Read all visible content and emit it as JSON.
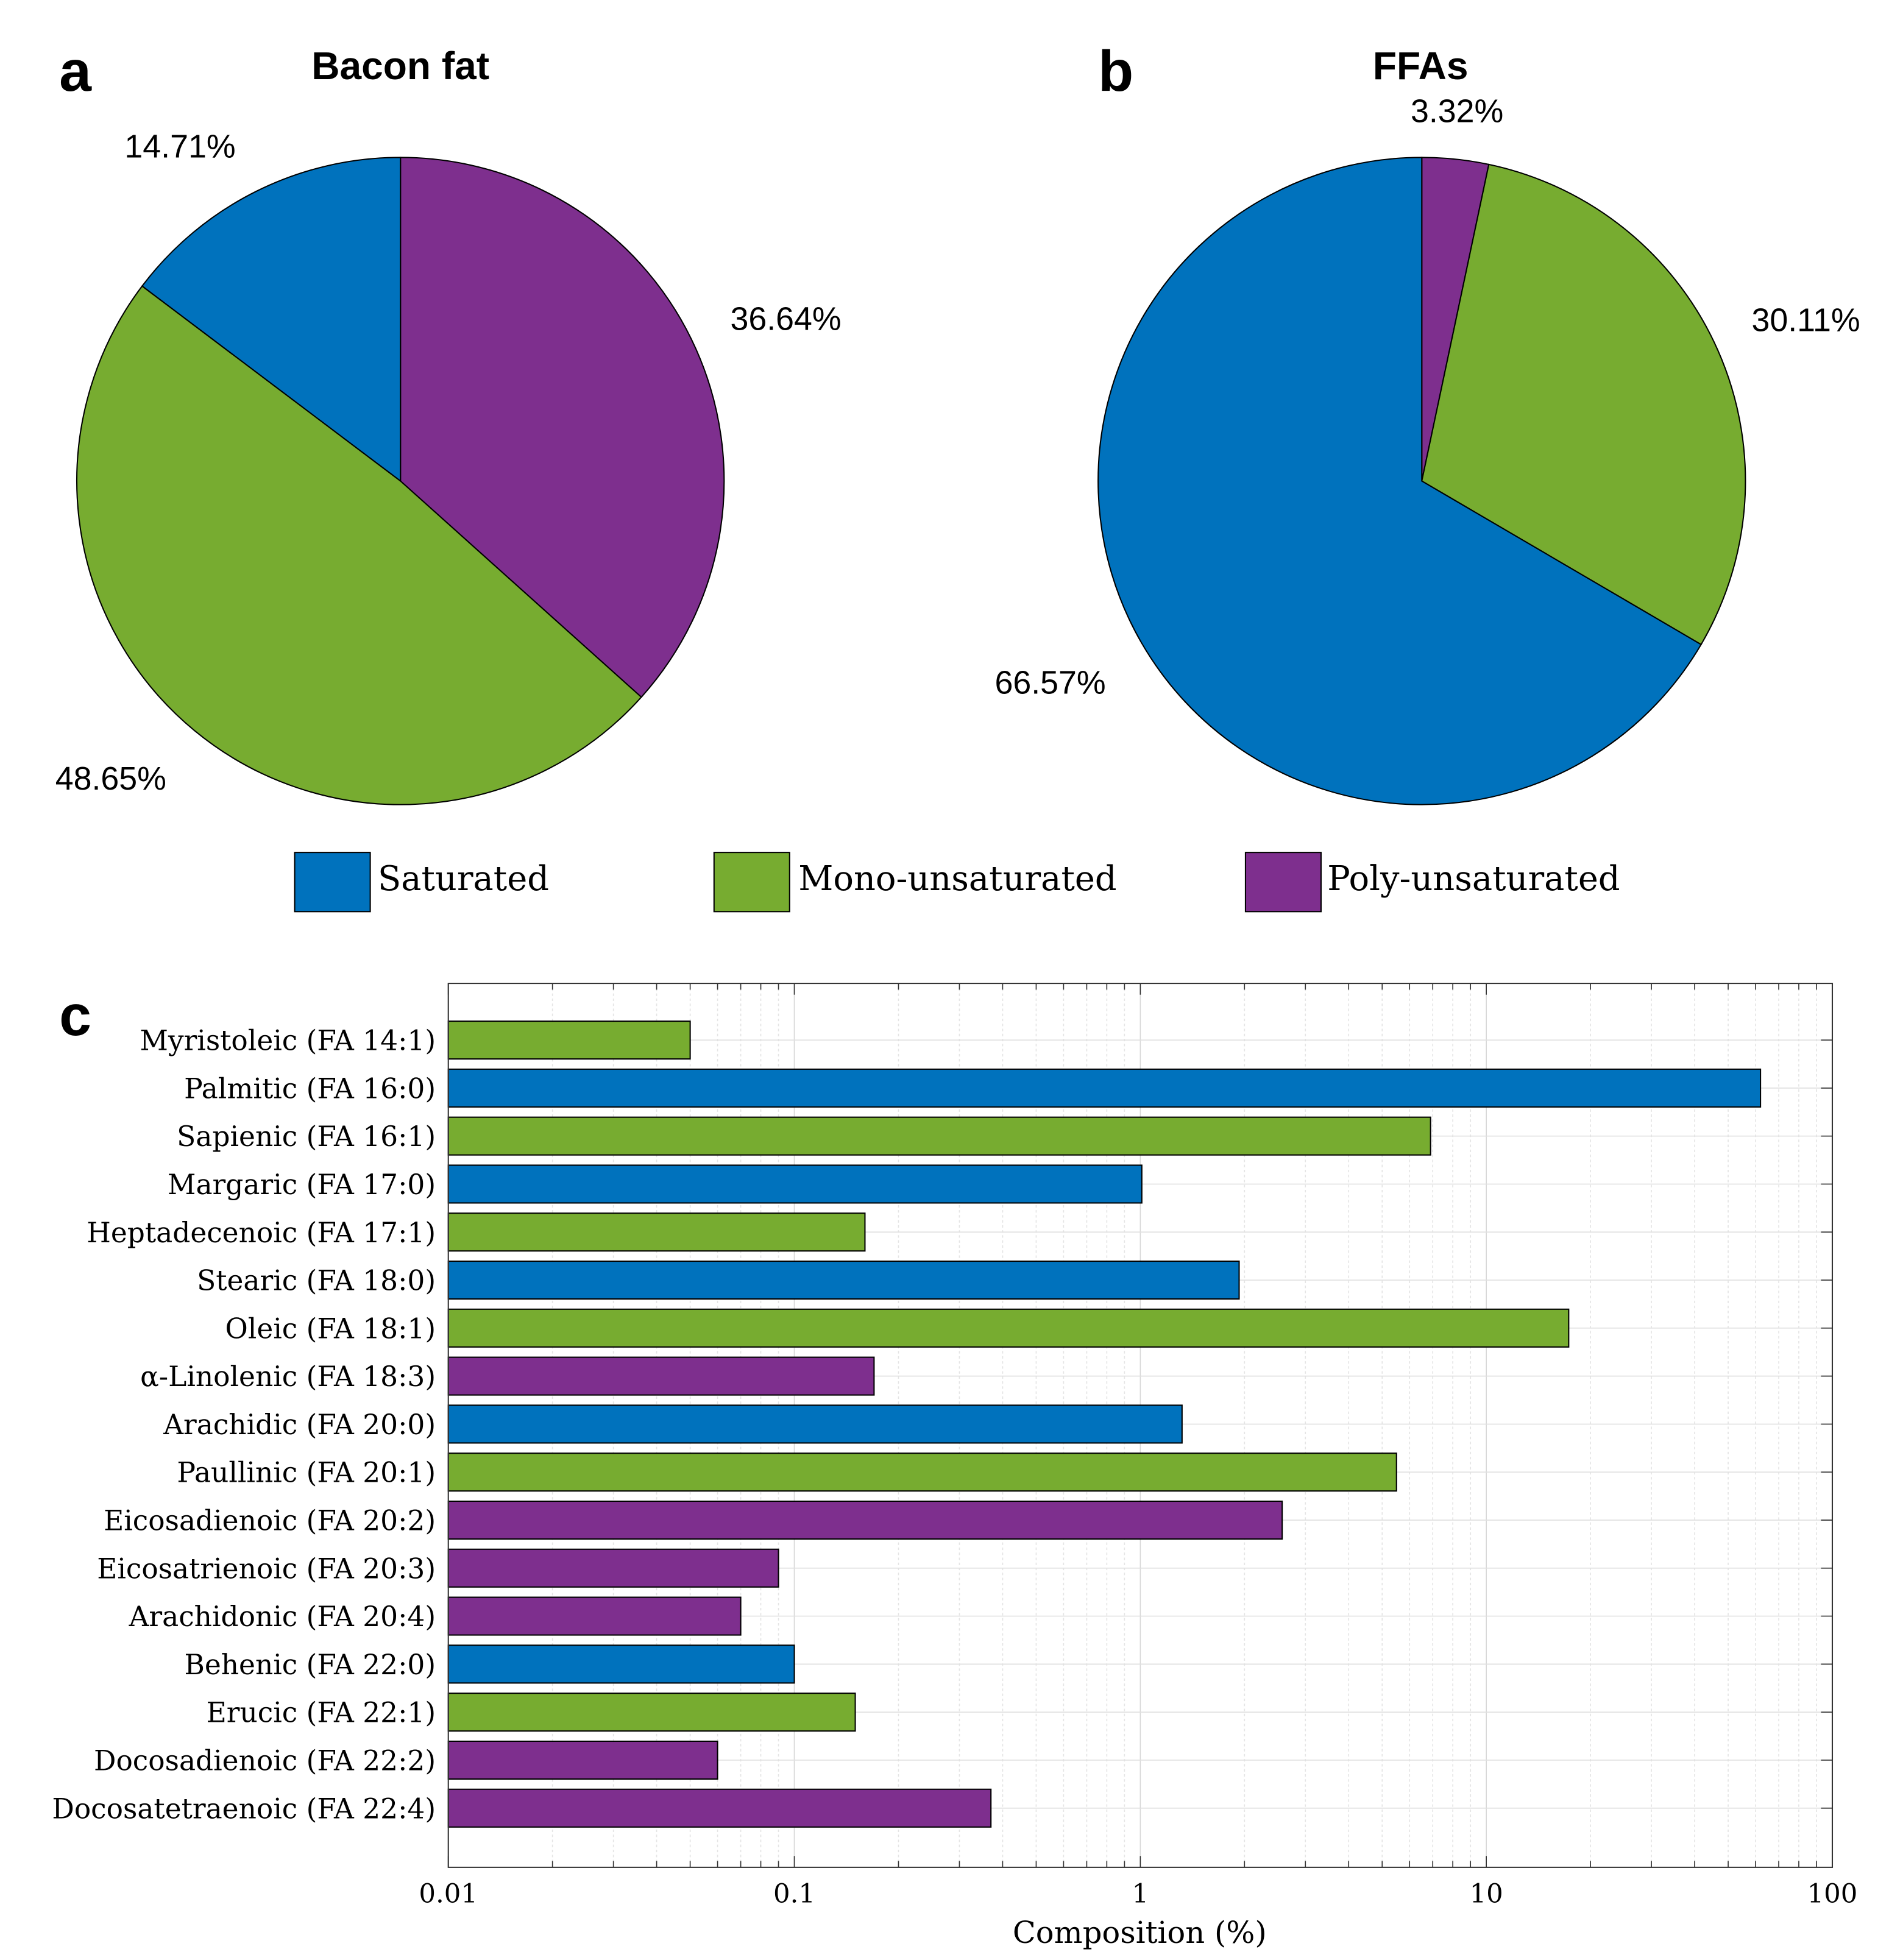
{
  "colors": {
    "saturated": "#0072BD",
    "mono": "#77AC30",
    "poly": "#7E2F8E"
  },
  "panels": {
    "a": "a",
    "b": "b",
    "c": "c"
  },
  "legend": [
    {
      "label": "Saturated",
      "color": "#0072BD"
    },
    {
      "label": "Mono-unsaturated",
      "color": "#77AC30"
    },
    {
      "label": "Poly-unsaturated",
      "color": "#7E2F8E"
    }
  ],
  "chart_data": [
    {
      "type": "pie",
      "title": "Bacon fat",
      "slices": [
        {
          "category": "Poly-unsaturated",
          "value": 36.64,
          "label": "36.64%",
          "color": "#7E2F8E"
        },
        {
          "category": "Mono-unsaturated",
          "value": 48.65,
          "label": "48.65%",
          "color": "#77AC30"
        },
        {
          "category": "Saturated",
          "value": 14.71,
          "label": "14.71%",
          "color": "#0072BD"
        }
      ]
    },
    {
      "type": "pie",
      "title": "FFAs",
      "slices": [
        {
          "category": "Poly-unsaturated",
          "value": 3.32,
          "label": "3.32%",
          "color": "#7E2F8E"
        },
        {
          "category": "Mono-unsaturated",
          "value": 30.11,
          "label": "30.11%",
          "color": "#77AC30"
        },
        {
          "category": "Saturated",
          "value": 66.57,
          "label": "66.57%",
          "color": "#0072BD"
        }
      ]
    },
    {
      "type": "bar",
      "orientation": "horizontal",
      "xlabel": "Composition (%)",
      "xscale": "log",
      "xlim": [
        0.01,
        100
      ],
      "xticks": [
        "0.01",
        "0.1",
        "1",
        "10",
        "100"
      ],
      "grid": true,
      "categories": [
        "Myristoleic (FA 14:1)",
        "Palmitic (FA 16:0)",
        "Sapienic (FA 16:1)",
        "Margaric (FA 17:0)",
        "Heptadecenoic (FA 17:1)",
        "Stearic (FA 18:0)",
        "Oleic (FA 18:1)",
        "α-Linolenic (FA 18:3)",
        "Arachidic (FA 20:0)",
        "Paullinic (FA 20:1)",
        "Eicosadienoic (FA 20:2)",
        "Eicosatrienoic (FA 20:3)",
        "Arachidonic (FA 20:4)",
        "Behenic (FA 22:0)",
        "Erucic (FA 22:1)",
        "Docosadienoic (FA 22:2)",
        "Docosatetraenoic (FA 22:4)"
      ],
      "values": [
        0.05,
        62,
        6.9,
        1.01,
        0.16,
        1.93,
        17.3,
        0.17,
        1.32,
        5.5,
        2.57,
        0.09,
        0.07,
        0.1,
        0.15,
        0.06,
        0.37
      ],
      "classes": [
        "mono",
        "saturated",
        "mono",
        "saturated",
        "mono",
        "saturated",
        "mono",
        "poly",
        "saturated",
        "mono",
        "poly",
        "poly",
        "poly",
        "saturated",
        "mono",
        "poly",
        "poly"
      ]
    }
  ]
}
